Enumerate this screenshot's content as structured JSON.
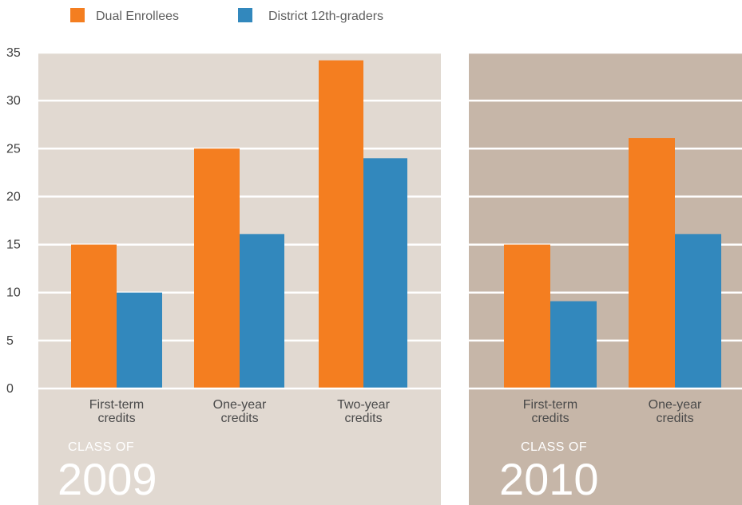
{
  "legend": [
    {
      "label": "Dual Enrollees",
      "color": "#f47e20"
    },
    {
      "label": "District 12th-graders",
      "color": "#3288bd"
    }
  ],
  "colors": {
    "panel_2009": "#e1d9d1",
    "panel_2010": "#c6b6a8",
    "gridline": "#ffffff"
  },
  "chart_data": [
    {
      "type": "bar",
      "panel_label": "CLASS OF",
      "panel_year": "2009",
      "categories": [
        [
          "First-term",
          "credits"
        ],
        [
          "One-year",
          "credits"
        ],
        [
          "Two-year",
          "credits"
        ]
      ],
      "series": [
        {
          "name": "Dual Enrollees",
          "values": [
            15,
            25,
            34.2
          ]
        },
        {
          "name": "District 12th-graders",
          "values": [
            10,
            16.1,
            24
          ]
        }
      ],
      "ylim": [
        0,
        35
      ],
      "yticks": [
        0,
        5,
        10,
        15,
        20,
        25,
        30,
        35
      ],
      "grid": true
    },
    {
      "type": "bar",
      "panel_label": "CLASS OF",
      "panel_year": "2010",
      "categories": [
        [
          "First-term",
          "credits"
        ],
        [
          "One-year",
          "credits"
        ]
      ],
      "series": [
        {
          "name": "Dual Enrollees",
          "values": [
            15,
            26.1
          ]
        },
        {
          "name": "District 12th-graders",
          "values": [
            9.1,
            16.1
          ]
        }
      ],
      "ylim": [
        0,
        35
      ],
      "yticks": [
        0,
        5,
        10,
        15,
        20,
        25,
        30,
        35
      ],
      "grid": true
    }
  ]
}
